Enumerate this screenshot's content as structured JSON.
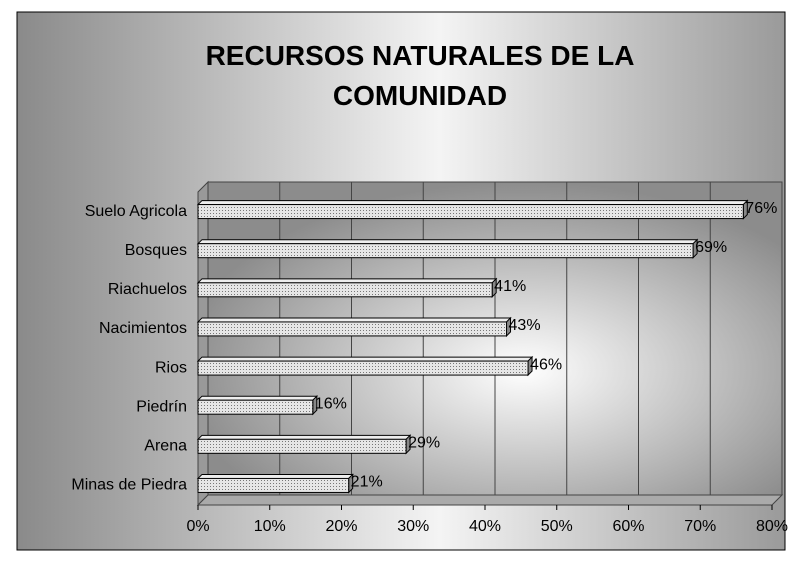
{
  "chart_data": {
    "type": "bar",
    "orientation": "horizontal",
    "title": "RECURSOS NATURALES DE LA COMUNIDAD",
    "categories": [
      "Suelo Agricola",
      "Bosques",
      "Riachuelos",
      "Nacimientos",
      "Rios",
      "Piedrín",
      "Arena",
      "Minas de Piedra"
    ],
    "values": [
      76,
      69,
      41,
      43,
      46,
      16,
      29,
      21
    ],
    "value_labels": [
      "76%",
      "69%",
      "41%",
      "43%",
      "46%",
      "16%",
      "29%",
      "21%"
    ],
    "color": "#c8c8c8",
    "xlim": [
      0,
      80
    ],
    "xticks": [
      {
        "value": 0,
        "label": "0%"
      },
      {
        "value": 10,
        "label": "10%"
      },
      {
        "value": 20,
        "label": "20%"
      },
      {
        "value": 30,
        "label": "30%"
      },
      {
        "value": 40,
        "label": "40%"
      },
      {
        "value": 50,
        "label": "50%"
      },
      {
        "value": 60,
        "label": "60%"
      },
      {
        "value": 70,
        "label": "70%"
      },
      {
        "value": 80,
        "label": "80%"
      }
    ],
    "grid": true
  }
}
